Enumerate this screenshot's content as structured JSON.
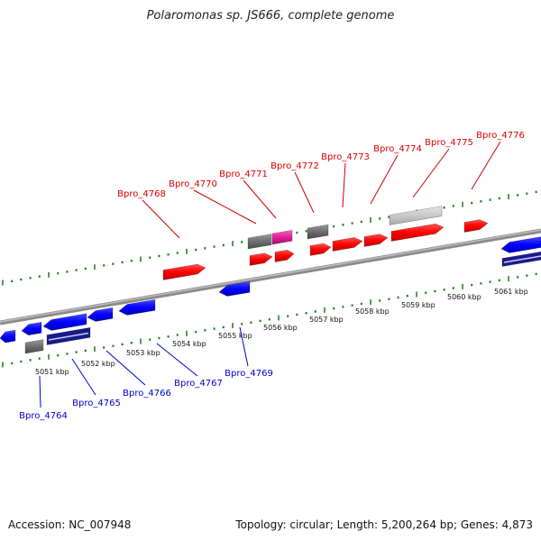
{
  "title": "Polaromonas sp. JS666, complete genome",
  "footer": {
    "accession": "Accession: NC_007948",
    "topology": "Topology: circular; Length: 5,200,264 bp; Genes: 4,873"
  },
  "colors": {
    "forward": "#ff0000",
    "reverse": "#0000ff",
    "gray": "#6e6e6e",
    "magenta": "#e0209a",
    "lightgray": "#c8c8c8",
    "tick": "#1a7a1a"
  },
  "kbp_labels": [
    "5051 kbp",
    "5052 kbp",
    "5053 kbp",
    "5054 kbp",
    "5055 kbp",
    "5056 kbp",
    "5057 kbp",
    "5058 kbp",
    "5059 kbp",
    "5060 kbp",
    "5061 kbp"
  ],
  "forward_labels": [
    "Bpro_4768",
    "Bpro_4770",
    "Bpro_4771",
    "Bpro_4772",
    "Bpro_4773",
    "Bpro_4774",
    "Bpro_4775",
    "Bpro_4776"
  ],
  "reverse_labels": [
    "Bpro_4764",
    "Bpro_4765",
    "Bpro_4766",
    "Bpro_4767",
    "Bpro_4769"
  ]
}
